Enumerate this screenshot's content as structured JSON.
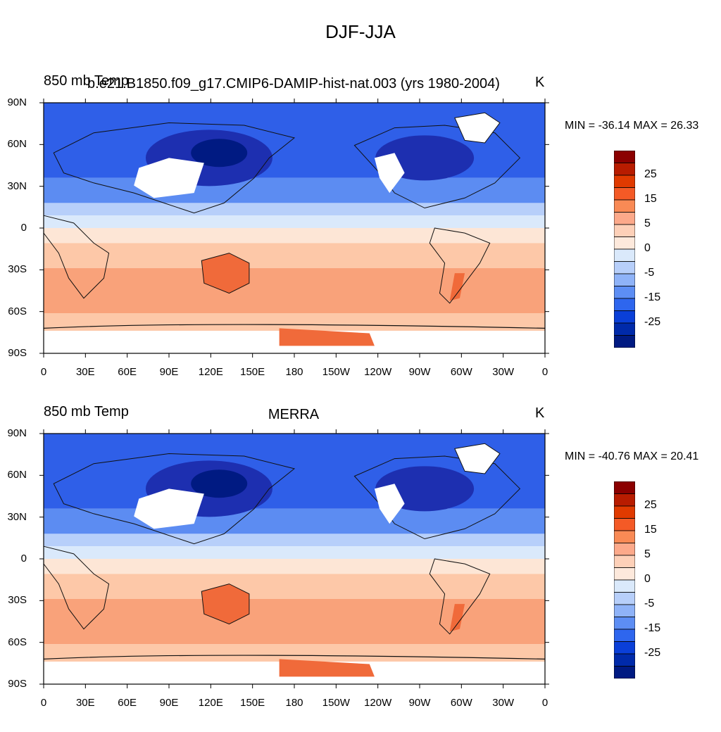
{
  "title": "DJF-JJA",
  "panels": [
    {
      "left_label": "850 mb Temp",
      "center_label": "b.e21.B1850.f09_g17.CMIP6-DAMIP-hist-nat.003 (yrs 1980-2004)",
      "right_label": "K",
      "minmax": "MIN = -36.14 MAX =  26.33"
    },
    {
      "left_label": "850 mb Temp",
      "center_label": "MERRA",
      "right_label": "K",
      "minmax": "MIN = -40.76 MAX =  20.41"
    }
  ],
  "lat_labels": [
    "90N",
    "60N",
    "30N",
    "0",
    "30S",
    "60S",
    "90S"
  ],
  "lon_labels": [
    "0",
    "30E",
    "60E",
    "90E",
    "120E",
    "150E",
    "180",
    "150W",
    "120W",
    "90W",
    "60W",
    "30W",
    "0"
  ],
  "colorbar": {
    "labels": [
      "25",
      "15",
      "5",
      "0",
      "-5",
      "-15",
      "-25"
    ],
    "colors": [
      "#8b0000",
      "#b81c00",
      "#e03a00",
      "#f45a26",
      "#f98a55",
      "#fca98a",
      "#fdd0b8",
      "#fde9dc",
      "#dae9fb",
      "#b7cffa",
      "#8fb3f8",
      "#5d8ef4",
      "#2e66ee",
      "#0a3fd8",
      "#002aaa",
      "#001a82"
    ]
  },
  "colors": {
    "polar_blue": "#2f5fe8",
    "deep_blue": "#1d2fb0",
    "mid_blue": "#5c8cf2",
    "light_blue": "#b7cffa",
    "pale_blue": "#dae9fb",
    "cream": "#fde6d6",
    "light_orange": "#fdc8a8",
    "orange": "#f9a27a",
    "dark_orange": "#f06a3a",
    "coastline": "#111111"
  }
}
